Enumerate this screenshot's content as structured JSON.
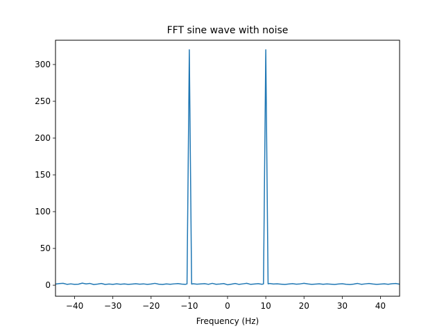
{
  "chart_data": {
    "type": "line",
    "title": "FFT sine wave with noise",
    "xlabel": "Frequency (Hz)",
    "ylabel": "",
    "xlim": [
      -45,
      45
    ],
    "ylim": [
      -15,
      333
    ],
    "xticks": [
      -40,
      -30,
      -20,
      -10,
      0,
      10,
      20,
      30,
      40
    ],
    "xtick_labels": [
      "−40",
      "−30",
      "−20",
      "−10",
      "0",
      "10",
      "20",
      "30",
      "40"
    ],
    "yticks": [
      0,
      50,
      100,
      150,
      200,
      250,
      300
    ],
    "ytick_labels": [
      "0",
      "50",
      "100",
      "150",
      "200",
      "250",
      "300"
    ],
    "grid": false,
    "legend": "none",
    "series": [
      {
        "color": "#1f77b4",
        "x": [
          -45,
          -44,
          -43,
          -42,
          -41,
          -40,
          -39,
          -38,
          -37,
          -36,
          -35,
          -34,
          -33,
          -32,
          -31,
          -30,
          -29,
          -28,
          -27,
          -26,
          -25,
          -24,
          -23,
          -22,
          -21,
          -20,
          -19,
          -18,
          -17,
          -16,
          -15,
          -14,
          -13,
          -12,
          -11,
          -10.6,
          -10,
          -9.4,
          -9,
          -8,
          -7,
          -6,
          -5,
          -4,
          -3,
          -2,
          -1,
          0,
          1,
          2,
          3,
          4,
          5,
          6,
          7,
          8,
          9,
          9.4,
          10,
          10.6,
          11,
          12,
          13,
          14,
          15,
          16,
          17,
          18,
          19,
          20,
          21,
          22,
          23,
          24,
          25,
          26,
          27,
          28,
          29,
          30,
          31,
          32,
          33,
          34,
          35,
          36,
          37,
          38,
          39,
          40,
          41,
          42,
          43,
          44,
          45
        ],
        "y": [
          1.5,
          2.2,
          2.6,
          1.2,
          1.8,
          1.1,
          1.4,
          2.8,
          1.7,
          2.4,
          0.9,
          1.5,
          2.3,
          1.0,
          1.6,
          1.2,
          1.9,
          1.3,
          1.7,
          1.1,
          1.5,
          2.0,
          1.4,
          1.8,
          1.2,
          1.6,
          2.5,
          1.4,
          1.0,
          1.7,
          1.3,
          1.8,
          2.2,
          1.5,
          1.2,
          1.8,
          320,
          1.5,
          2.0,
          1.4,
          1.7,
          2.1,
          1.2,
          2.5,
          1.3,
          1.6,
          2.2,
          0.6,
          1.4,
          2.3,
          1.1,
          1.8,
          2.6,
          1.2,
          1.6,
          2.1,
          1.3,
          1.7,
          320,
          1.9,
          2.3,
          1.6,
          1.9,
          1.4,
          1.0,
          1.6,
          2.1,
          1.4,
          1.8,
          2.6,
          1.7,
          1.2,
          1.5,
          1.9,
          1.3,
          1.7,
          1.4,
          1.0,
          1.6,
          2.0,
          1.3,
          0.9,
          1.5,
          2.4,
          1.2,
          1.8,
          2.3,
          1.6,
          1.1,
          1.5,
          1.9,
          1.3,
          2.0,
          2.3,
          1.4
        ]
      }
    ]
  }
}
